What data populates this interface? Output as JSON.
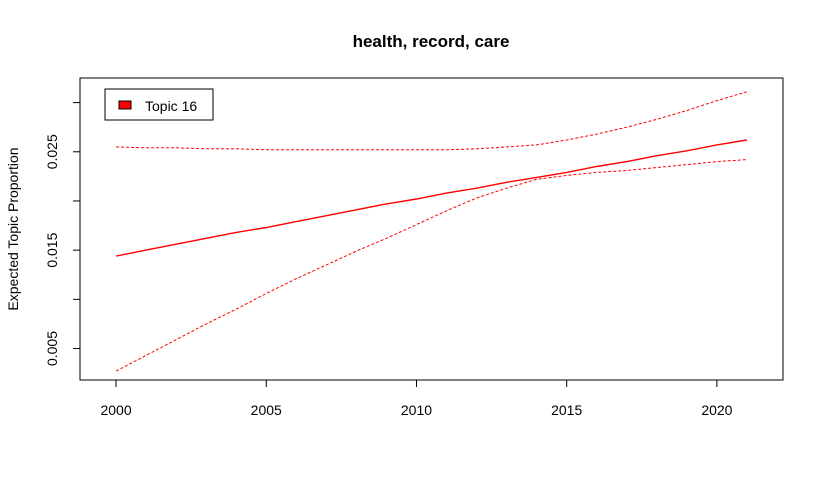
{
  "chart_data": {
    "type": "line",
    "title": "health, record, care",
    "xlabel": "",
    "ylabel": "Expected Topic Proportion",
    "xlim": [
      1998.8,
      2022.2
    ],
    "ylim": [
      0.0018,
      0.0325
    ],
    "x_ticks": [
      2000,
      2005,
      2010,
      2015,
      2020
    ],
    "x_tick_labels": [
      "2000",
      "2005",
      "2010",
      "2015",
      "2020"
    ],
    "y_ticks": [
      0.005,
      0.015,
      0.025
    ],
    "y_tick_labels": [
      "0.005",
      "0.015",
      "0.025"
    ],
    "y_minor_ticks": [
      0.01,
      0.02,
      0.03
    ],
    "legend": {
      "position": "top-left",
      "entries": [
        "Topic 16"
      ]
    },
    "grid": false,
    "colors": {
      "series": "#ff0000",
      "axis": "#000000"
    },
    "x": [
      2000,
      2001,
      2002,
      2003,
      2004,
      2005,
      2006,
      2007,
      2008,
      2009,
      2010,
      2011,
      2012,
      2013,
      2014,
      2015,
      2016,
      2017,
      2018,
      2019,
      2020,
      2021
    ],
    "series": [
      {
        "name": "Topic 16",
        "role": "estimate",
        "style": "solid",
        "values": [
          0.0144,
          0.015,
          0.0156,
          0.0162,
          0.0168,
          0.0173,
          0.0179,
          0.0185,
          0.0191,
          0.0197,
          0.0202,
          0.0208,
          0.0213,
          0.0219,
          0.0224,
          0.0229,
          0.0235,
          0.024,
          0.0246,
          0.0251,
          0.0257,
          0.0262
        ]
      },
      {
        "role": "upper",
        "style": "dashed",
        "values": [
          0.0255,
          0.0254,
          0.0254,
          0.0253,
          0.0253,
          0.0252,
          0.0252,
          0.0252,
          0.0252,
          0.0252,
          0.0252,
          0.0252,
          0.0253,
          0.0255,
          0.0257,
          0.0262,
          0.0268,
          0.0275,
          0.0283,
          0.0292,
          0.0302,
          0.0311
        ]
      },
      {
        "role": "lower",
        "style": "dashed",
        "values": [
          0.0027,
          0.0043,
          0.0059,
          0.0075,
          0.009,
          0.0106,
          0.0121,
          0.0135,
          0.0149,
          0.0162,
          0.0176,
          0.019,
          0.0203,
          0.0213,
          0.0222,
          0.0226,
          0.0229,
          0.0231,
          0.0234,
          0.0237,
          0.024,
          0.0242
        ]
      }
    ]
  }
}
